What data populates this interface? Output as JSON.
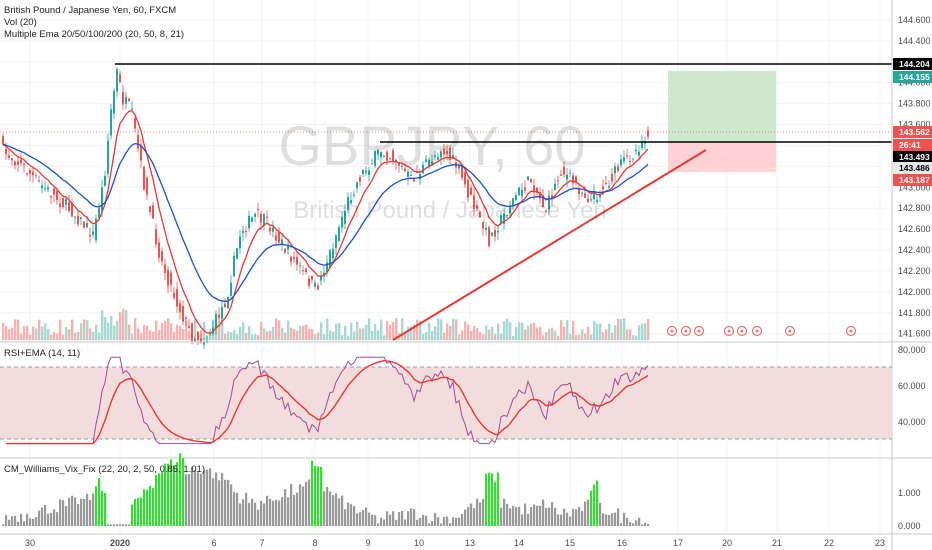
{
  "header": {
    "symbol_line": "British Pound / Japanese Yen, 60, FXCM",
    "vol_line": "Vol (20)",
    "ema_line": "Multiple Ema 20/50/100/200 (20, 50, 8, 21)",
    "watermark": "GBPJPY, 60",
    "watermark_sub": "British Pound / Japanese Yen"
  },
  "panes": {
    "rsi_label": "RSI+EMA (14, 11)",
    "vix_label": "CM_Williams_Vix_Fix (22, 20, 2, 50, 0.85, 1.01)"
  },
  "colors": {
    "up": "#26a69a",
    "down": "#ef5350",
    "ema_fast": "#e53935",
    "ema_slow": "#1e50c8",
    "trendline": "#e53935",
    "target_zone": "#c8e6c9",
    "stop_zone": "#ffcdd2",
    "rsi_line": "#9c4f96",
    "rsi_band": "#f3dcdc",
    "vix_spike": "#33dd33",
    "vix_bar": "#999999"
  },
  "price_tags": [
    {
      "value": "144.204",
      "bg": "#000000",
      "fg": "#ffffff"
    },
    {
      "value": "144.155",
      "bg": "#26a69a",
      "fg": "#ffffff"
    },
    {
      "value": "143.562",
      "bg": "#ef5350",
      "fg": "#ffffff"
    },
    {
      "value": "26:41",
      "bg": "#ef5350",
      "fg": "#ffffff"
    },
    {
      "value": "143.493",
      "bg": "#000000",
      "fg": "#ffffff"
    },
    {
      "value": "143.486",
      "bg": "#e8e8e8",
      "fg": "#000000"
    },
    {
      "value": "143.187",
      "bg": "#ef5350",
      "fg": "#ffffff"
    }
  ],
  "chart_data": [
    {
      "type": "candlestick",
      "title": "British Pound / Japanese Yen, 60, FXCM",
      "y_ticks": [
        "144.600",
        "144.400",
        "144.200",
        "144.000",
        "143.800",
        "143.600",
        "143.400",
        "143.200",
        "143.000",
        "142.800",
        "142.600",
        "142.400",
        "142.200",
        "142.000",
        "141.800",
        "141.600"
      ],
      "ylim": [
        141.58,
        144.72
      ],
      "x_ticks": [
        "30",
        "2020",
        "6",
        "7",
        "8",
        "9",
        "10",
        "13",
        "14",
        "15",
        "16",
        "17",
        "20",
        "21",
        "22",
        "23"
      ],
      "series": [
        {
          "name": "EMA 20",
          "color": "#e53935"
        },
        {
          "name": "EMA 50",
          "color": "#1e50c8"
        }
      ],
      "annotations": {
        "horizontal_lines": [
          144.204,
          143.493
        ],
        "current_price": 143.562,
        "trendline": [
          [
            "9",
            141.6
          ],
          [
            "16",
            143.45
          ]
        ],
        "long_position": {
          "entry": 143.493,
          "target": 144.155,
          "stop": 143.187
        }
      },
      "grid": true
    },
    {
      "type": "line",
      "title": "RSI+EMA (14, 11)",
      "y_ticks": [
        "80.000",
        "60.000",
        "40.000"
      ],
      "ylim": [
        20,
        80
      ],
      "bands": [
        30,
        70
      ],
      "series": [
        {
          "name": "RSI"
        },
        {
          "name": "EMA"
        }
      ]
    },
    {
      "type": "bar",
      "title": "CM_Williams_Vix_Fix (22, 20, 2, 50, 0.85, 1.01)",
      "y_ticks": [
        "1.000",
        "0.000"
      ],
      "ylim": [
        0,
        2
      ]
    }
  ]
}
